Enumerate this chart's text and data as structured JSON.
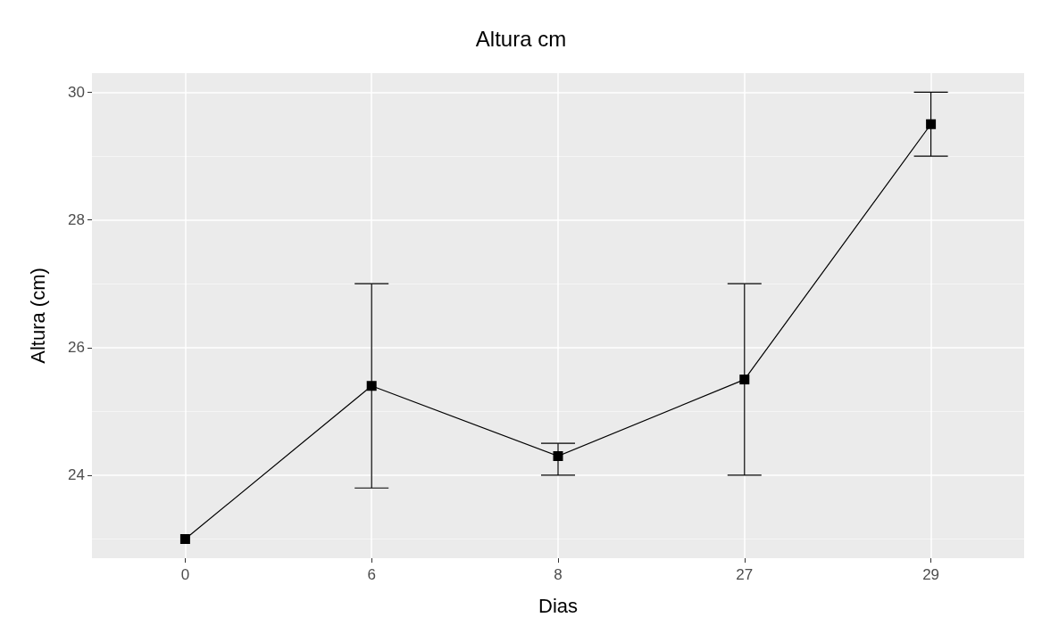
{
  "chart_data": {
    "type": "line",
    "title": "Altura cm",
    "xlabel": "Dias",
    "ylabel": "Altura (cm)",
    "categories": [
      "0",
      "6",
      "8",
      "27",
      "29"
    ],
    "series": [
      {
        "color": "#000000",
        "values": [
          23.0,
          25.4,
          24.3,
          25.5,
          29.5
        ],
        "errors": [
          null,
          [
            23.8,
            27.0
          ],
          [
            24.0,
            24.5
          ],
          [
            24.0,
            27.0
          ],
          [
            29.0,
            30.0
          ]
        ]
      }
    ],
    "ylim": [
      22.7,
      30.3
    ],
    "yticks": [
      24,
      26,
      28,
      30
    ],
    "grid": true,
    "marker": "square",
    "line_style": "solid"
  }
}
